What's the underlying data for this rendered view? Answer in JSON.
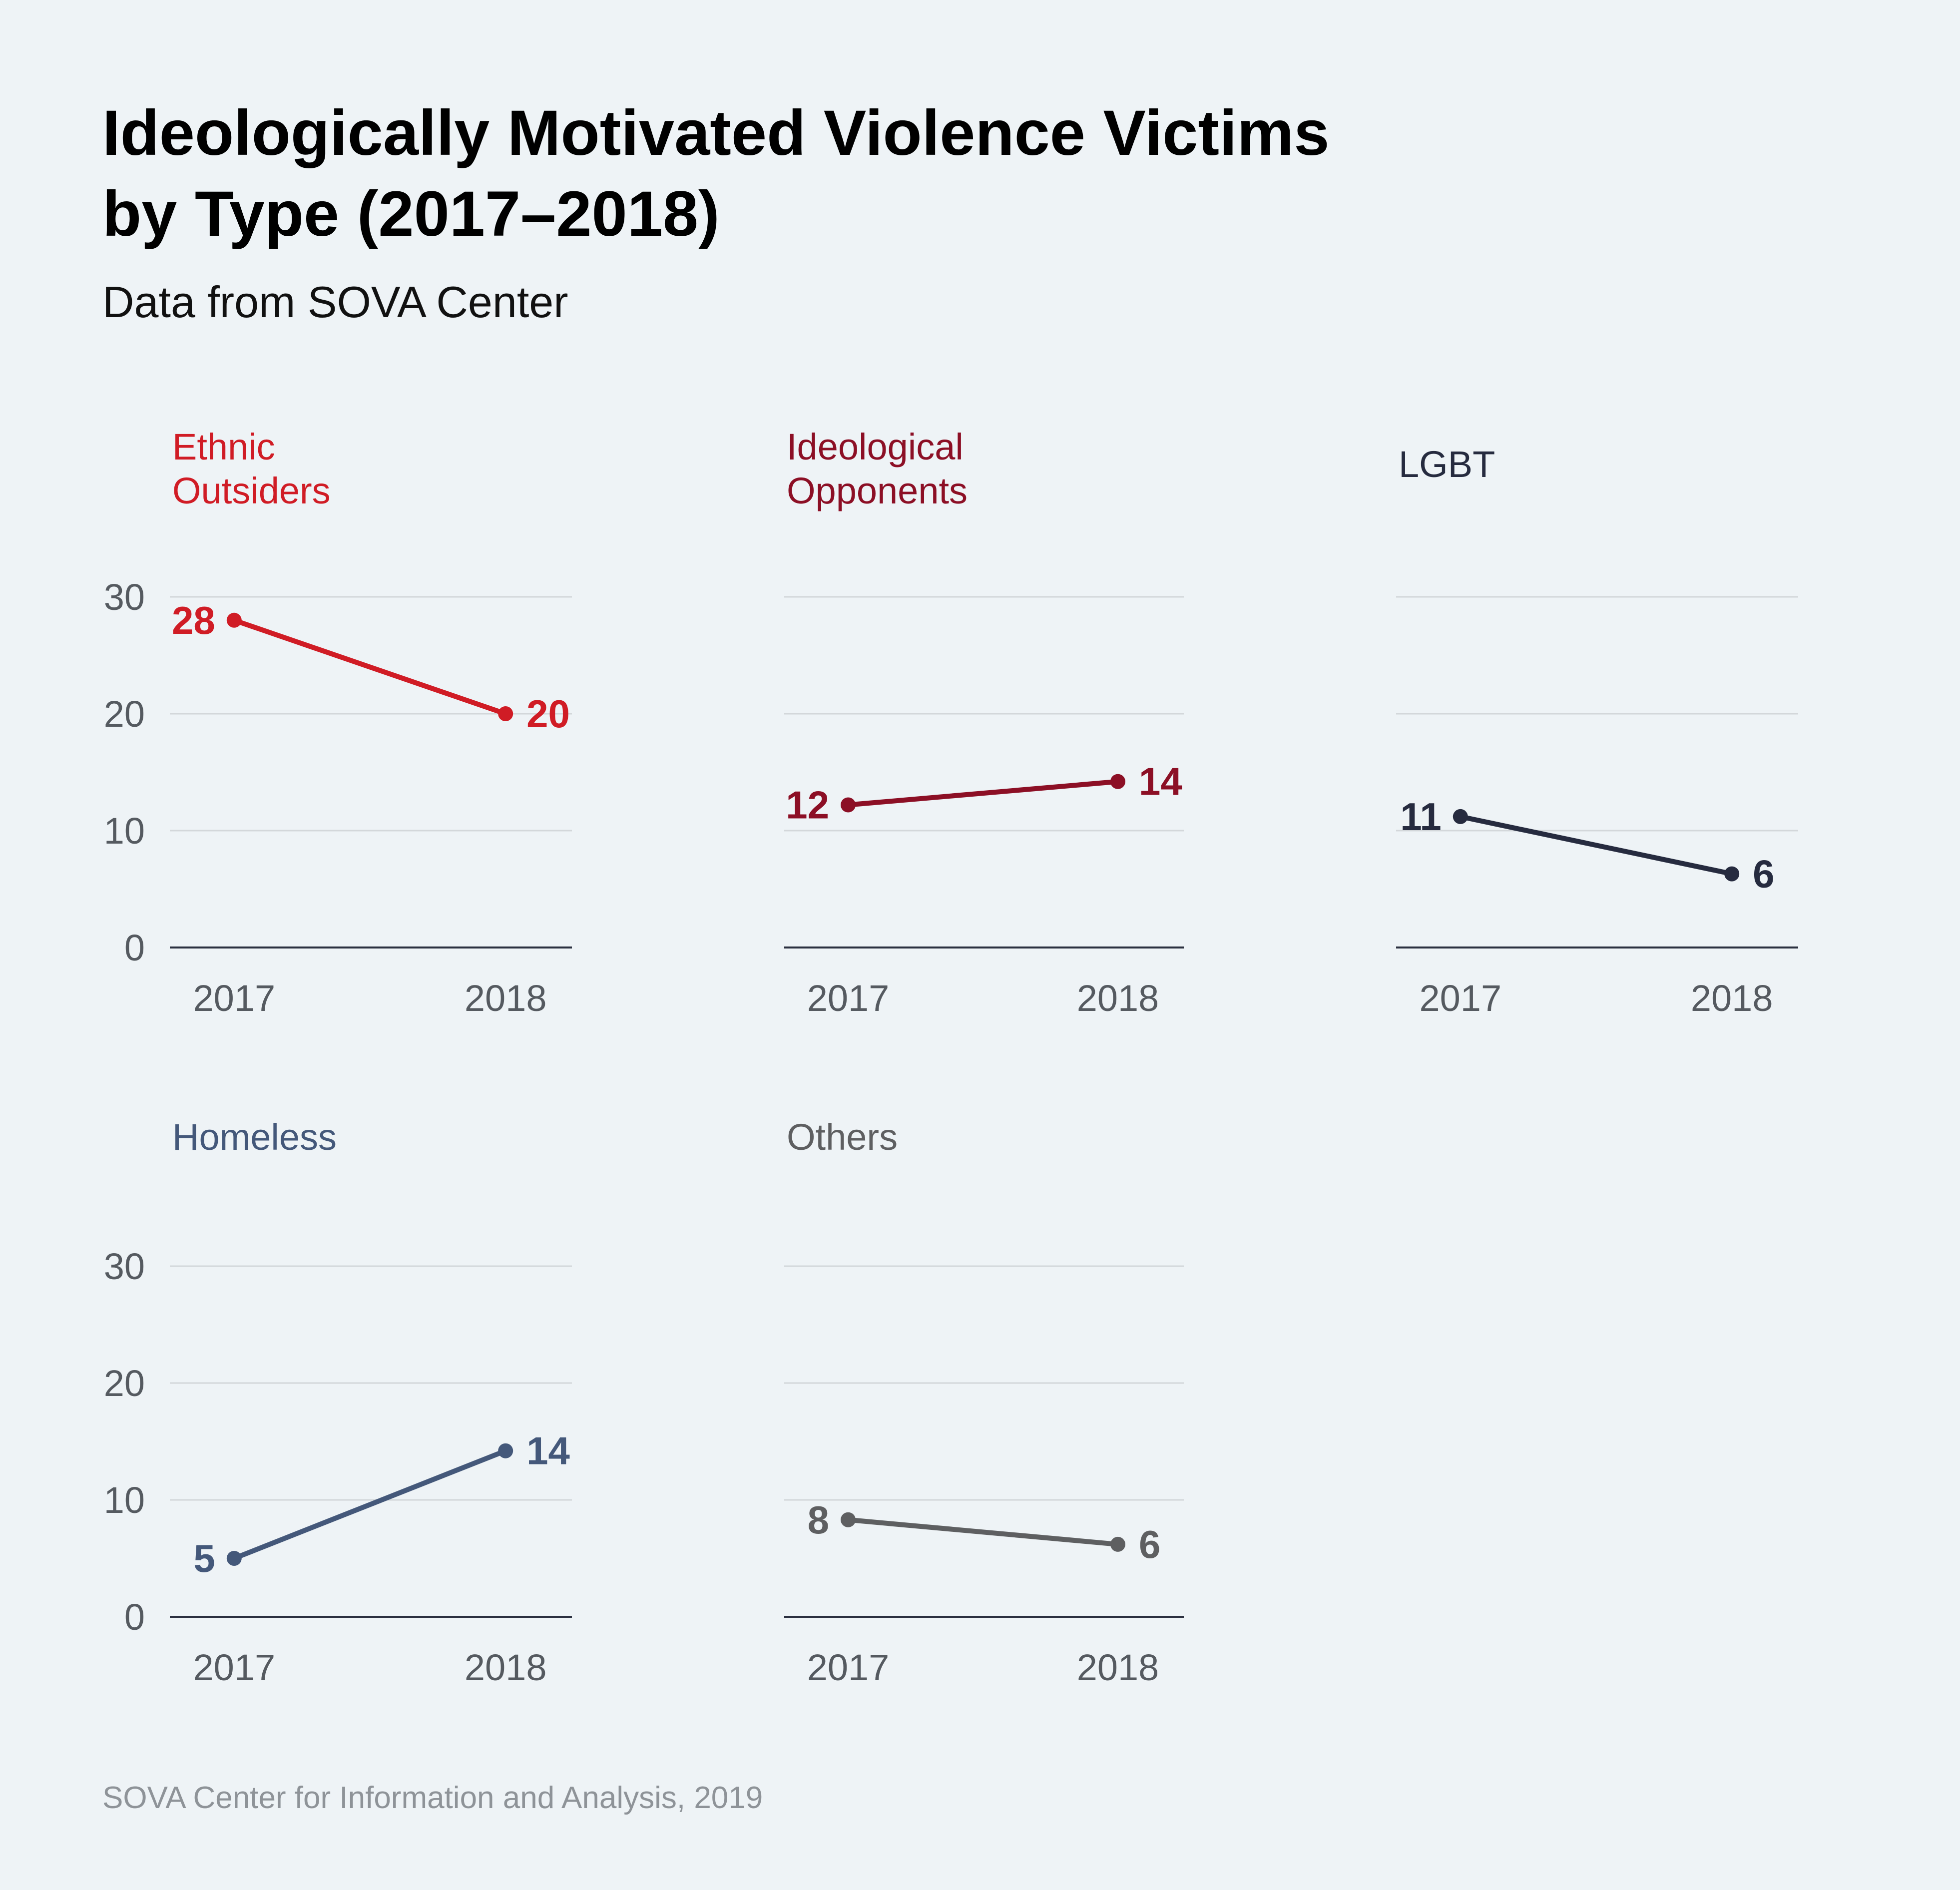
{
  "title_lines": [
    "Ideologically Motivated Violence Victims",
    "by Type (2017–2018)"
  ],
  "subtitle": "Data from SOVA Center",
  "source": "SOVA Center for Information and Analysis, 2019",
  "chart_data": {
    "type": "line",
    "x": [
      "2017",
      "2018"
    ],
    "ylim": [
      0,
      30
    ],
    "yticks": [
      0,
      10,
      20,
      30
    ],
    "grid": true,
    "panels": [
      {
        "title_lines": [
          "Ethnic",
          "Outsiders"
        ],
        "color": "#d01c25",
        "values": [
          28,
          20
        ],
        "labels": [
          "28",
          "20"
        ],
        "show_y_ticks": true
      },
      {
        "title_lines": [
          "Ideological",
          "Opponents"
        ],
        "color": "#8c0f25",
        "values": [
          12.2,
          14.2
        ],
        "labels": [
          "12",
          "14"
        ],
        "show_y_ticks": false
      },
      {
        "title_lines": [
          "LGBT"
        ],
        "color": "#262b3f",
        "values": [
          11.2,
          6.3
        ],
        "labels": [
          "11",
          "6"
        ],
        "show_y_ticks": false
      },
      {
        "title_lines": [
          "Homeless"
        ],
        "color": "#44587a",
        "values": [
          5,
          14.2
        ],
        "labels": [
          "5",
          "14"
        ],
        "show_y_ticks": true
      },
      {
        "title_lines": [
          "Others"
        ],
        "color": "#5e5f61",
        "values": [
          8.3,
          6.2
        ],
        "labels": [
          "8",
          "6"
        ],
        "show_y_ticks": false
      }
    ]
  }
}
